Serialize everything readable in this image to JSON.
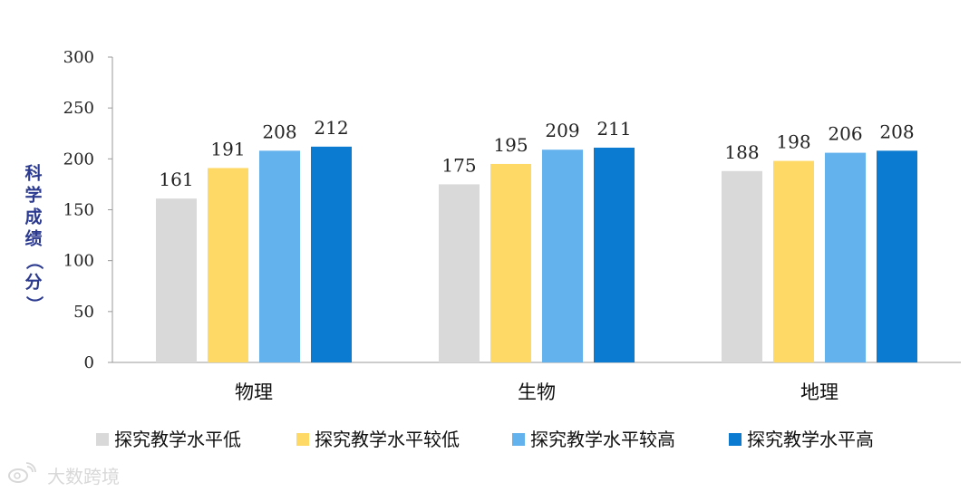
{
  "chart_data": {
    "type": "bar",
    "title": "",
    "ylabel": "科学成绩（分）",
    "xlabel": "",
    "ylim": [
      0,
      300
    ],
    "yticks": [
      0,
      50,
      100,
      150,
      200,
      250,
      300
    ],
    "categories": [
      "物理",
      "生物",
      "地理"
    ],
    "legend_position": "bottom",
    "grid": false,
    "series": [
      {
        "name": "探究教学水平低",
        "color": "#d9d9d9",
        "values": [
          161,
          175,
          188
        ]
      },
      {
        "name": "探究教学水平较低",
        "color": "#ffd966",
        "values": [
          191,
          195,
          198
        ]
      },
      {
        "name": "探究教学水平较高",
        "color": "#63b1ed",
        "values": [
          208,
          209,
          206
        ]
      },
      {
        "name": "探究教学水平高",
        "color": "#0a7bd0",
        "values": [
          212,
          211,
          208
        ]
      }
    ]
  },
  "watermark": {
    "text": "大数跨境",
    "icon": "weibo-logo-icon"
  }
}
